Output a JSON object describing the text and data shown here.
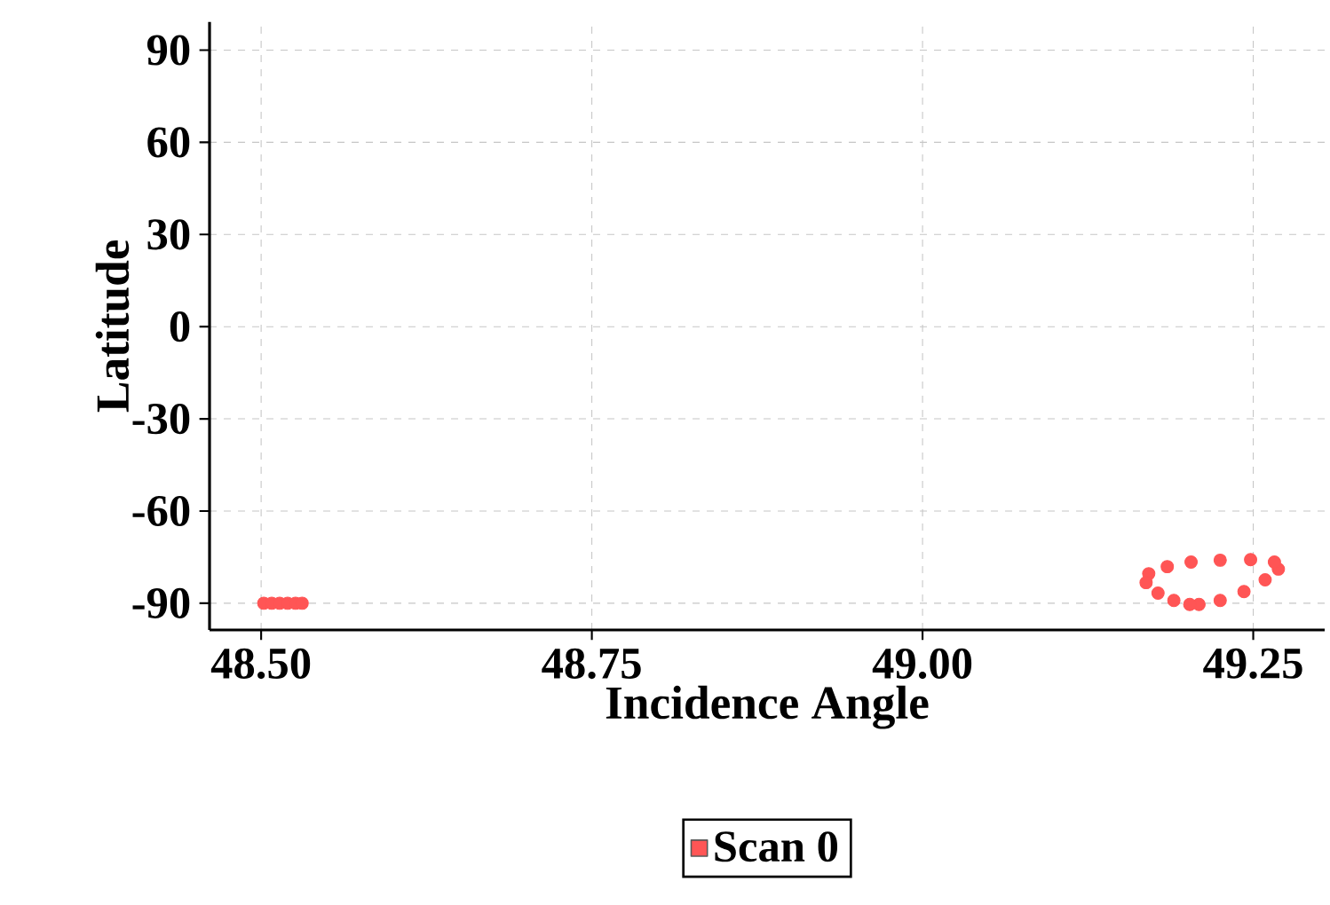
{
  "chart_data": {
    "type": "scatter",
    "xlabel": "Incidence Angle",
    "ylabel": "Latitude",
    "xlim": [
      48.461,
      49.304
    ],
    "ylim": [
      -98.7,
      99.2
    ],
    "xticks": [
      {
        "value": 48.5,
        "label": "48.50"
      },
      {
        "value": 48.75,
        "label": "48.75"
      },
      {
        "value": 49.0,
        "label": "49.00"
      },
      {
        "value": 49.25,
        "label": "49.25"
      }
    ],
    "yticks": [
      -90,
      -60,
      -30,
      0,
      30,
      60,
      90
    ],
    "grid": true,
    "legend": "bottom",
    "marker": "circle",
    "series": [
      {
        "name": "Scan 0",
        "color": "#ff5555",
        "x": [
          48.502,
          48.508,
          48.514,
          48.52,
          48.526,
          48.531,
          49.209,
          49.225,
          49.243,
          49.259,
          49.269,
          49.266,
          49.248,
          49.225,
          49.203,
          49.185,
          49.171,
          49.169,
          49.178,
          49.19,
          49.202
        ],
        "values": [
          -90,
          -90,
          -90,
          -90,
          -90,
          -90,
          -90.4,
          -89.1,
          -86.2,
          -82.4,
          -78.9,
          -76.6,
          -75.8,
          -76.0,
          -76.6,
          -78.1,
          -80.4,
          -83.3,
          -86.7,
          -89.1,
          -90.4
        ]
      }
    ]
  }
}
